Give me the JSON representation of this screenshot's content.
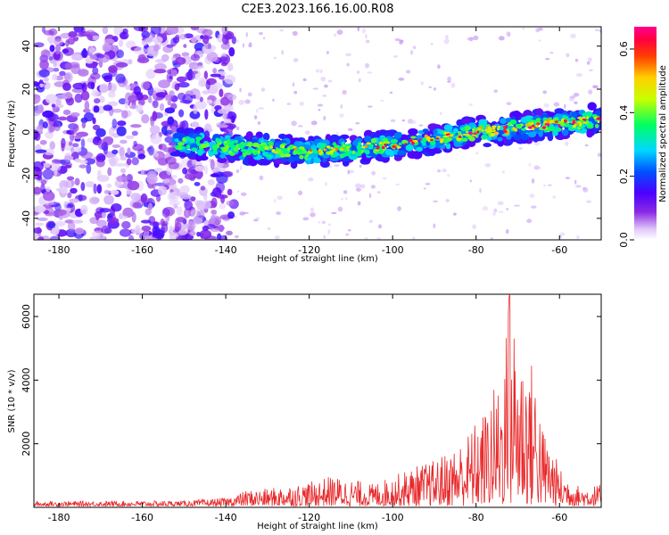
{
  "title": "C2E3.2023.166.16.00.R08",
  "chart_data": [
    {
      "type": "heatmap",
      "xlabel": "Height of straight line (km)",
      "ylabel": "Frequency (Hz)",
      "xlim": [
        -186,
        -50
      ],
      "ylim": [
        -50,
        49
      ],
      "xticks": [
        "-180",
        "-160",
        "-140",
        "-120",
        "-100",
        "-80",
        "-60"
      ],
      "yticks": [
        "-40",
        "-20",
        "0",
        "20",
        "40"
      ],
      "colorbar": {
        "label": "Normalized spectral amplitude",
        "range": [
          0,
          0.67
        ],
        "ticks": [
          "0.0",
          "0.2",
          "0.4",
          "0.6"
        ],
        "colormap": "white-purple-blue-cyan-green-yellow-red-magenta"
      },
      "ridge": {
        "description_points": [
          [
            -150,
            -5
          ],
          [
            -140,
            -7
          ],
          [
            -130,
            -8
          ],
          [
            -120,
            -9
          ],
          [
            -110,
            -8
          ],
          [
            -100,
            -6
          ],
          [
            -90,
            -3
          ],
          [
            -80,
            0
          ],
          [
            -70,
            2
          ],
          [
            -60,
            4
          ],
          [
            -50,
            6
          ]
        ],
        "peak_amplitude_at_km": -72
      },
      "noise_region_km": [
        -186,
        -138
      ]
    },
    {
      "type": "line",
      "xlabel": "Height of straight line (km)",
      "ylabel": "SNR (10 * v/v)",
      "xlim": [
        -186,
        -50
      ],
      "ylim": [
        0,
        6700
      ],
      "xticks": [
        "-180",
        "-160",
        "-140",
        "-120",
        "-100",
        "-80",
        "-60"
      ],
      "yticks": [
        "2000",
        "4000",
        "6000"
      ],
      "color": "#e8282a",
      "envelope": [
        [
          -186,
          150
        ],
        [
          -150,
          170
        ],
        [
          -140,
          260
        ],
        [
          -137,
          400
        ],
        [
          -135,
          500
        ],
        [
          -130,
          550
        ],
        [
          -125,
          650
        ],
        [
          -120,
          750
        ],
        [
          -115,
          950
        ],
        [
          -110,
          850
        ],
        [
          -105,
          700
        ],
        [
          -100,
          950
        ],
        [
          -95,
          1250
        ],
        [
          -90,
          1450
        ],
        [
          -85,
          1900
        ],
        [
          -82,
          2300
        ],
        [
          -80,
          2700
        ],
        [
          -78,
          3000
        ],
        [
          -76,
          3700
        ],
        [
          -74,
          4100
        ],
        [
          -72,
          6700
        ],
        [
          -70,
          5500
        ],
        [
          -68,
          4800
        ],
        [
          -66,
          4500
        ],
        [
          -64,
          2500
        ],
        [
          -62,
          2000
        ],
        [
          -60,
          1200
        ],
        [
          -55,
          600
        ],
        [
          -50,
          700
        ]
      ]
    }
  ]
}
